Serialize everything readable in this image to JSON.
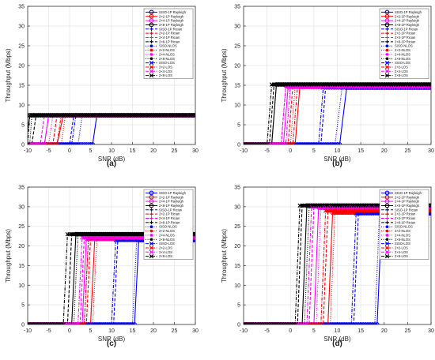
{
  "figure": {
    "xlabel": "SNR (dB)",
    "ylabel": "Throughput (Mbps)"
  },
  "legend_entries": [
    {
      "name": "SISO-1P Rayleigh",
      "color": "#0000ff",
      "dash": "solid",
      "marker": "circle"
    },
    {
      "name": "2×2-1P Rayleigh",
      "color": "#ff0000",
      "dash": "solid",
      "marker": "circle"
    },
    {
      "name": "2×4-1P Rayleigh",
      "color": "#ff00ff",
      "dash": "solid",
      "marker": "circle"
    },
    {
      "name": "2×8-1P Rayleigh",
      "color": "#000000",
      "dash": "solid",
      "marker": "circle"
    },
    {
      "name": "SISO-1P Rician",
      "color": "#0000ff",
      "dash": "dashed",
      "marker": "plus"
    },
    {
      "name": "2×2-1P Rician",
      "color": "#ff0000",
      "dash": "dashed",
      "marker": "plus"
    },
    {
      "name": "2×4-1P Rician",
      "color": "#ff00ff",
      "dash": "dashed",
      "marker": "plus"
    },
    {
      "name": "2×8-1P Rician",
      "color": "#000000",
      "dash": "dashed",
      "marker": "plus"
    },
    {
      "name": "SISO-NLOS",
      "color": "#0000ff",
      "dash": "dotted",
      "marker": "dot"
    },
    {
      "name": "2×2-NLOS",
      "color": "#ff0000",
      "dash": "dotted",
      "marker": "dot"
    },
    {
      "name": "2×4-NLOS",
      "color": "#ff00ff",
      "dash": "dotted",
      "marker": "dot"
    },
    {
      "name": "2×8-NLOS",
      "color": "#000000",
      "dash": "dotted",
      "marker": "dot"
    },
    {
      "name": "SISO-LOS",
      "color": "#0000ff",
      "dash": "dashdot",
      "marker": "x"
    },
    {
      "name": "2×2-LOS",
      "color": "#ff0000",
      "dash": "dashdot",
      "marker": "x"
    },
    {
      "name": "2×4-LOS",
      "color": "#ff00ff",
      "dash": "dashdot",
      "marker": "x"
    },
    {
      "name": "2×8-LOS",
      "color": "#000000",
      "dash": "dashdot",
      "marker": "x"
    }
  ],
  "chart_data": [
    {
      "type": "line",
      "panel_label": "(a)",
      "xlabel": "SNR (dB)",
      "ylabel": "Throughput (Mbps)",
      "xlim": [
        -10,
        30
      ],
      "ylim": [
        0,
        35
      ],
      "xticks": [
        -10,
        -5,
        0,
        5,
        10,
        15,
        20,
        25,
        30
      ],
      "yticks": [
        0,
        5,
        10,
        15,
        20,
        25,
        30,
        35
      ],
      "grid": true,
      "legend_position": "top-right",
      "plateau": [
        7.4,
        7.4,
        7.4,
        7.4,
        7.4,
        7.4,
        7.4,
        7.4,
        7.4,
        7.4,
        7.4,
        7.4,
        7.4,
        7.4,
        7.4,
        7.4
      ],
      "step_low": [
        5.5,
        -3,
        -6,
        -10.5,
        0,
        -4,
        -7,
        -9,
        2,
        -2,
        -5,
        -9.5,
        0.5,
        -3,
        -6,
        -10
      ],
      "step_high": [
        6.5,
        -1.5,
        -5,
        -9.5,
        1,
        -3,
        -6,
        -8,
        3,
        -1,
        -4,
        -9,
        1.5,
        -2,
        -5,
        -9.5
      ]
    },
    {
      "type": "line",
      "panel_label": "(b)",
      "xlabel": "SNR (dB)",
      "ylabel": "Throughput (Mbps)",
      "xlim": [
        -10,
        30
      ],
      "ylim": [
        0,
        35
      ],
      "xticks": [
        -10,
        -5,
        0,
        5,
        10,
        15,
        20,
        25,
        30
      ],
      "yticks": [
        0,
        5,
        10,
        15,
        20,
        25,
        30,
        35
      ],
      "grid": true,
      "legend_position": "top-right",
      "plateau": [
        14.4,
        14.6,
        14.6,
        15.2,
        14.4,
        14.6,
        14.6,
        15.2,
        14.4,
        14.6,
        14.6,
        15.2,
        14.4,
        14.6,
        14.6,
        15.2
      ],
      "step_low": [
        10.5,
        1,
        -1.5,
        -4,
        6.5,
        -0.5,
        -2,
        -4.5,
        9.5,
        0,
        -2,
        -4,
        6,
        0.5,
        -1,
        -5
      ],
      "step_high": [
        12,
        2,
        -0.5,
        -3,
        7.5,
        0.5,
        -1,
        -3.5,
        11,
        1,
        -1,
        -3,
        7,
        1.5,
        0,
        -4
      ]
    },
    {
      "type": "line",
      "panel_label": "(c)",
      "xlabel": "SNR (dB)",
      "ylabel": "Throughput (Mbps)",
      "xlim": [
        -10,
        30
      ],
      "ylim": [
        0,
        35
      ],
      "xticks": [
        -10,
        -5,
        0,
        5,
        10,
        15,
        20,
        25,
        30
      ],
      "yticks": [
        0,
        5,
        10,
        15,
        20,
        25,
        30,
        35
      ],
      "grid": true,
      "legend_position": "top-right",
      "plateau": [
        21.5,
        21.8,
        21.8,
        23.0,
        21.5,
        22.0,
        22.2,
        23.0,
        21.5,
        21.8,
        22.0,
        23.0,
        21.5,
        22.0,
        22.2,
        23.0
      ],
      "step_low": [
        15.5,
        5,
        3,
        0.5,
        10.5,
        4,
        2.5,
        -0.5,
        15,
        5.5,
        3.5,
        1,
        10,
        3.5,
        2,
        -1.5
      ],
      "step_high": [
        16.5,
        6,
        4,
        1.5,
        11.5,
        5,
        3.5,
        0.5,
        16,
        6.5,
        4.5,
        2,
        11,
        4.5,
        3,
        -0.5
      ]
    },
    {
      "type": "line",
      "panel_label": "(d)",
      "xlabel": "SNR (dB)",
      "ylabel": "Throughput (Mbps)",
      "xlim": [
        -10,
        30
      ],
      "ylim": [
        0,
        35
      ],
      "xticks": [
        -10,
        -5,
        0,
        5,
        10,
        15,
        20,
        25,
        30
      ],
      "yticks": [
        0,
        5,
        10,
        15,
        20,
        25,
        30,
        35
      ],
      "grid": true,
      "legend_position": "top-right",
      "plateau": [
        28.3,
        28.5,
        29.8,
        30.3,
        28.3,
        29.0,
        30.0,
        30.3,
        28.3,
        28.5,
        29.5,
        30.3,
        28.3,
        29.0,
        30.0,
        30.3
      ],
      "step_low": [
        18.5,
        8,
        5,
        2.5,
        13.5,
        7,
        4,
        1.5,
        18,
        8.5,
        5.5,
        3,
        13,
        6.5,
        3.5,
        1
      ],
      "step_high": [
        19.5,
        9,
        6,
        3.5,
        14.5,
        8,
        5,
        2.5,
        19,
        9.5,
        6.5,
        4,
        14,
        7.5,
        4.5,
        2
      ]
    }
  ]
}
